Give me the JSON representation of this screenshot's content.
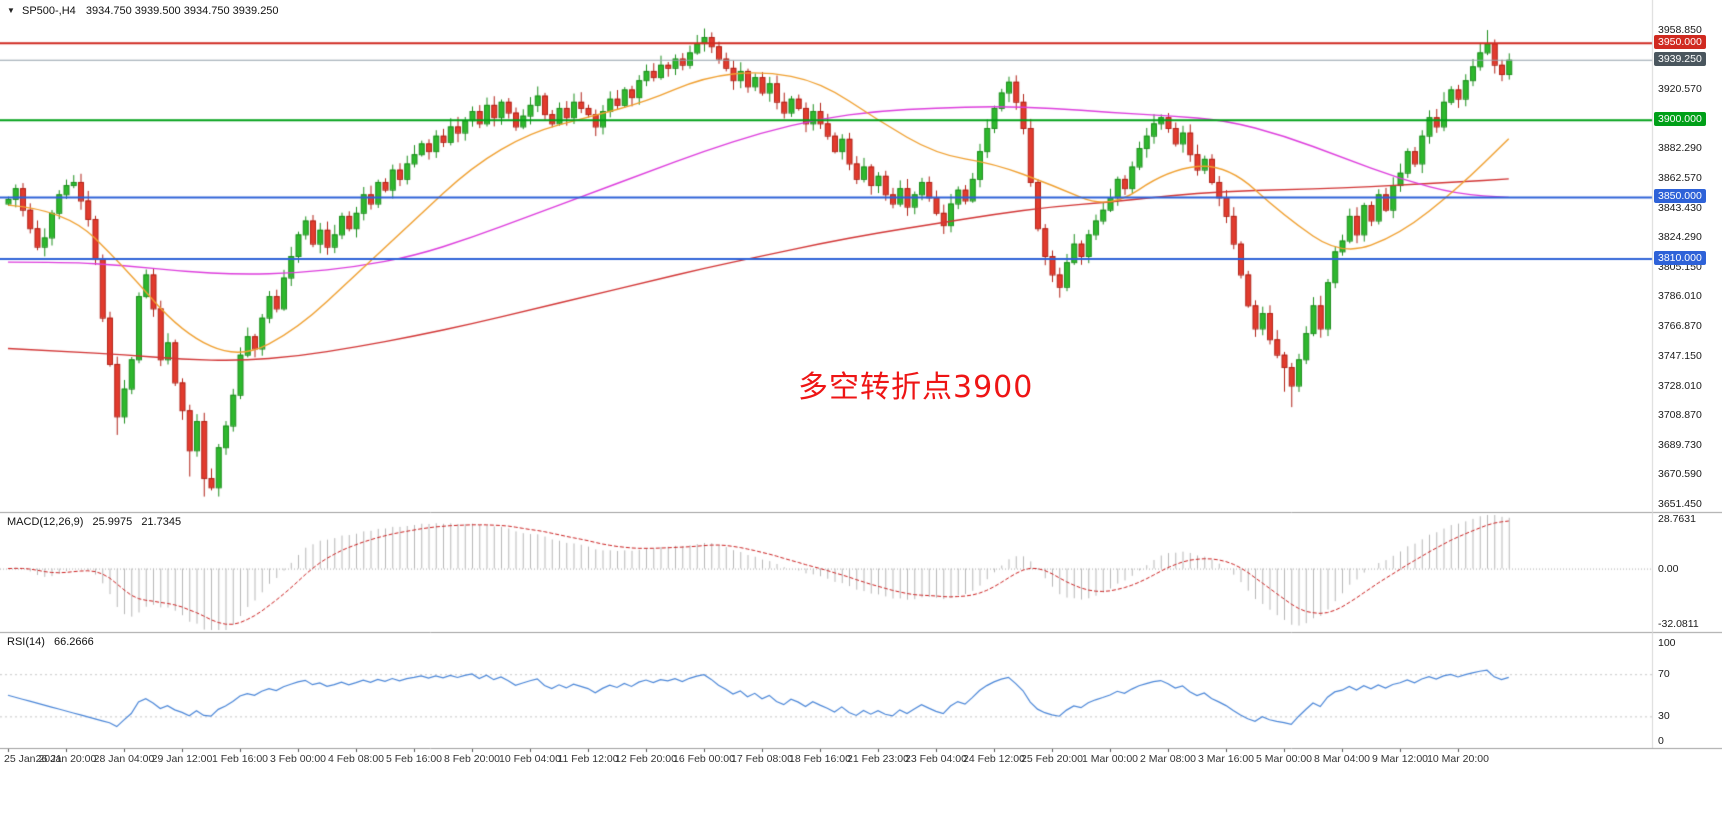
{
  "window": {
    "symbol_line": {
      "symbol": "SP500-,H4",
      "ohlc": "3934.750 3939.500 3934.750 3939.250"
    }
  },
  "colors": {
    "up": "#2eb82e",
    "up_border": "#1e8f1e",
    "down": "#e23b2e",
    "down_border": "#b22318",
    "ma_fast": "#f0a030",
    "ma_mid": "#dd3ddd",
    "ma_slow": "#d23535",
    "macd_hist": "#b8b8b8",
    "macd_signal": "#cc2222",
    "rsi": "#4a86d8",
    "separator": "#a0a0a0"
  },
  "chart_data": {
    "type": "candlestick",
    "symbol": "SP500-",
    "timeframe": "H4",
    "current_bar": {
      "open": "3934.750",
      "high": "3939.500",
      "low": "3934.750",
      "close": "3939.250"
    },
    "price_axis": {
      "range": [
        3646,
        3978
      ],
      "ticks": [
        3958.85,
        3920.57,
        3882.29,
        3862.57,
        3843.43,
        3824.29,
        3805.15,
        3786.01,
        3766.87,
        3747.15,
        3728.01,
        3708.87,
        3689.73,
        3670.59,
        3651.45
      ]
    },
    "levels": [
      {
        "value": 3950.0,
        "label": "3950.000",
        "color": "#d02a20",
        "width": 2
      },
      {
        "value": 3900.0,
        "label": "3900.000",
        "color": "#00a018",
        "width": 2
      },
      {
        "value": 3850.0,
        "label": "3850.000",
        "color": "#2e62d8",
        "width": 2
      },
      {
        "value": 3810.0,
        "label": "3810.000",
        "color": "#2e62d8",
        "width": 2
      }
    ],
    "current_price": {
      "value": 3939.25,
      "label": "3939.250",
      "line_color": "#93a1aa",
      "badge_color": "#4a565e"
    },
    "time_labels": [
      "25 Jan 2021",
      "26 Jan 20:00",
      "28 Jan 04:00",
      "29 Jan 12:00",
      "1 Feb 16:00",
      "3 Feb 00:00",
      "4 Feb 08:00",
      "5 Feb 16:00",
      "8 Feb 20:00",
      "10 Feb 04:00",
      "11 Feb 12:00",
      "12 Feb 20:00",
      "16 Feb 00:00",
      "17 Feb 08:00",
      "18 Feb 16:00",
      "21 Feb 23:00",
      "23 Feb 04:00",
      "24 Feb 12:00",
      "25 Feb 20:00",
      "1 Mar 00:00",
      "2 Mar 08:00",
      "3 Mar 16:00",
      "5 Mar 00:00",
      "8 Mar 04:00",
      "9 Mar 12:00",
      "10 Mar 20:00"
    ],
    "bars_per_label": 8,
    "candles": {
      "first_open": 3846,
      "closes": [
        3849,
        3856,
        3842,
        3830,
        3818,
        3824,
        3840,
        3852,
        3858,
        3860,
        3848,
        3836,
        3810,
        3772,
        3742,
        3708,
        3726,
        3745,
        3786,
        3800,
        3778,
        3745,
        3756,
        3730,
        3712,
        3686,
        3705,
        3668,
        3662,
        3688,
        3702,
        3722,
        3748,
        3760,
        3752,
        3772,
        3786,
        3778,
        3798,
        3812,
        3826,
        3835,
        3820,
        3829,
        3818,
        3826,
        3838,
        3830,
        3840,
        3852,
        3846,
        3860,
        3855,
        3868,
        3862,
        3872,
        3878,
        3885,
        3880,
        3890,
        3886,
        3896,
        3892,
        3900,
        3906,
        3898,
        3910,
        3902,
        3912,
        3905,
        3896,
        3903,
        3910,
        3916,
        3904,
        3898,
        3908,
        3902,
        3912,
        3908,
        3904,
        3896,
        3906,
        3914,
        3910,
        3920,
        3915,
        3926,
        3932,
        3928,
        3936,
        3934,
        3940,
        3936,
        3944,
        3950,
        3954,
        3948,
        3940,
        3934,
        3926,
        3932,
        3922,
        3928,
        3918,
        3924,
        3912,
        3905,
        3914,
        3908,
        3898,
        3906,
        3898,
        3890,
        3880,
        3888,
        3872,
        3862,
        3870,
        3858,
        3864,
        3852,
        3846,
        3856,
        3844,
        3852,
        3860,
        3850,
        3840,
        3832,
        3846,
        3855,
        3848,
        3862,
        3880,
        3895,
        3908,
        3918,
        3925,
        3912,
        3895,
        3860,
        3830,
        3812,
        3800,
        3792,
        3808,
        3820,
        3812,
        3826,
        3835,
        3842,
        3850,
        3862,
        3856,
        3870,
        3882,
        3890,
        3898,
        3902,
        3895,
        3885,
        3892,
        3878,
        3868,
        3875,
        3860,
        3850,
        3838,
        3820,
        3800,
        3780,
        3765,
        3775,
        3758,
        3748,
        3740,
        3728,
        3745,
        3762,
        3780,
        3765,
        3795,
        3815,
        3822,
        3838,
        3826,
        3845,
        3835,
        3852,
        3842,
        3858,
        3866,
        3880,
        3872,
        3890,
        3902,
        3896,
        3912,
        3920,
        3914,
        3926,
        3935,
        3944,
        3950,
        3936,
        3930,
        3939.25
      ],
      "wick_overrides": {
        "15": {
          "low": 3696
        },
        "25": {
          "low": 3669
        },
        "27": {
          "low": 3656
        },
        "28": {
          "low": 3660
        },
        "96": {
          "high": 3959.5
        },
        "97": {
          "high": 3957
        },
        "145": {
          "low": 3785
        },
        "176": {
          "low": 3724
        },
        "177": {
          "low": 3714
        },
        "204": {
          "high": 3958.5
        }
      }
    },
    "ma": {
      "anchor_indices": [
        0,
        8,
        16,
        24,
        32,
        40,
        48,
        56,
        64,
        72,
        80,
        88,
        96,
        104,
        112,
        120,
        128,
        136,
        144,
        152,
        160,
        168,
        176,
        184,
        192,
        200,
        207
      ],
      "fast": [
        3845,
        3842,
        3805,
        3762,
        3745,
        3765,
        3800,
        3835,
        3870,
        3892,
        3902,
        3912,
        3928,
        3932,
        3925,
        3900,
        3878,
        3872,
        3858,
        3842,
        3868,
        3872,
        3838,
        3812,
        3826,
        3856,
        3888
      ],
      "mid": [
        3808,
        3808,
        3806,
        3802,
        3800,
        3801,
        3805,
        3812,
        3824,
        3838,
        3852,
        3866,
        3880,
        3892,
        3901,
        3906,
        3908,
        3909,
        3908,
        3905,
        3903,
        3900,
        3890,
        3876,
        3862,
        3852,
        3850
      ],
      "slow": [
        3752,
        3750,
        3748,
        3745,
        3744,
        3747,
        3753,
        3760,
        3768,
        3777,
        3786,
        3795,
        3804,
        3812,
        3820,
        3827,
        3833,
        3839,
        3844,
        3847,
        3851,
        3854,
        3855,
        3856,
        3858,
        3860,
        3862
      ]
    },
    "macd": {
      "label": "MACD(12,26,9)",
      "value_main": "25.9975",
      "value_signal": "21.7345",
      "axis": [
        {
          "text": "28.7631",
          "value": 28.7631
        },
        {
          "text": "0.00",
          "value": 0
        },
        {
          "text": "-32.0811",
          "value": -32.0811
        }
      ],
      "range": [
        -37,
        33
      ]
    },
    "rsi": {
      "label": "RSI(14)",
      "value": "66.2666",
      "axis": [
        {
          "text": "100",
          "value": 100
        },
        {
          "text": "70",
          "value": 70
        },
        {
          "text": "30",
          "value": 30
        },
        {
          "text": "0",
          "value": 0
        }
      ],
      "level_lines": [
        70,
        30
      ]
    },
    "annotation": {
      "text": "多空转折点3900",
      "color": "#ee1515"
    }
  }
}
